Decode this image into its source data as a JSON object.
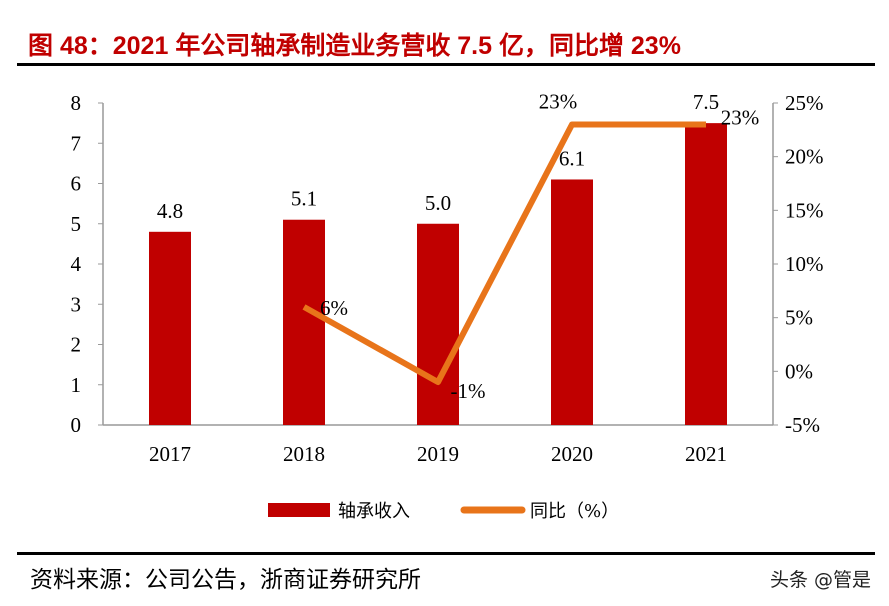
{
  "title": "图 48：2021 年公司轴承制造业务营收 7.5 亿，同比增 23%",
  "source": "资料来源：公司公告，浙商证券研究所",
  "watermark": "头条 @管是",
  "chart_data": {
    "type": "bar+line",
    "categories": [
      "2017",
      "2018",
      "2019",
      "2020",
      "2021"
    ],
    "series": [
      {
        "name": "轴承收入",
        "type": "bar",
        "axis": "left",
        "values": [
          4.8,
          5.1,
          5.0,
          6.1,
          7.5
        ],
        "labels": [
          "4.8",
          "5.1",
          "5.0",
          "6.1",
          "7.5"
        ],
        "color": "#c00000"
      },
      {
        "name": "同比（%）",
        "type": "line",
        "axis": "right",
        "values": [
          null,
          6,
          -1,
          23,
          23
        ],
        "labels": [
          "",
          "6%",
          "-1%",
          "23%",
          "23%"
        ],
        "color": "#e8741a"
      }
    ],
    "left_axis": {
      "min": 0,
      "max": 8,
      "ticks": [
        "0",
        "1",
        "2",
        "3",
        "4",
        "5",
        "6",
        "7",
        "8"
      ]
    },
    "right_axis": {
      "min": -5,
      "max": 25,
      "ticks": [
        "-5%",
        "0%",
        "5%",
        "10%",
        "15%",
        "20%",
        "25%"
      ]
    },
    "legend_position": "bottom",
    "grid": false
  }
}
